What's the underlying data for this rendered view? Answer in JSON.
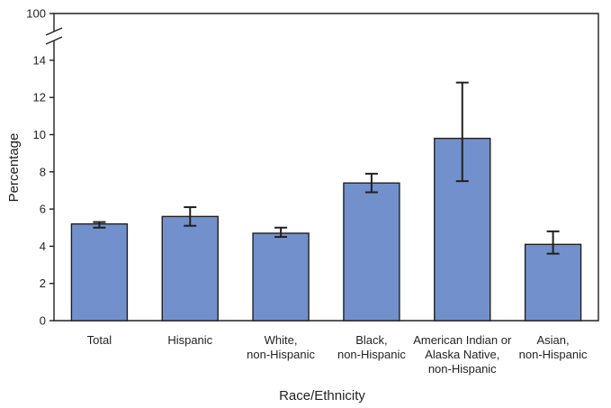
{
  "chart_data": {
    "type": "bar",
    "xlabel": "Race/Ethnicity",
    "ylabel": "Percentage",
    "ylim": [
      0,
      15
    ],
    "y_ticks": [
      0,
      2,
      4,
      6,
      8,
      10,
      12,
      14
    ],
    "y_break_top_label": "100",
    "axis_break": true,
    "grid": false,
    "bar_color": "#7291cc",
    "categories": [
      [
        "Total"
      ],
      [
        "Hispanic"
      ],
      [
        "White,",
        "non-Hispanic"
      ],
      [
        "Black,",
        "non-Hispanic"
      ],
      [
        "American Indian or",
        "Alaska Native,",
        "non-Hispanic"
      ],
      [
        "Asian,",
        "non-Hispanic"
      ]
    ],
    "values": [
      5.2,
      5.6,
      4.7,
      7.4,
      9.8,
      4.1
    ],
    "error_low": [
      5.0,
      5.1,
      4.5,
      6.9,
      7.5,
      3.6
    ],
    "error_high": [
      5.3,
      6.1,
      5.0,
      7.9,
      12.8,
      4.8
    ]
  }
}
